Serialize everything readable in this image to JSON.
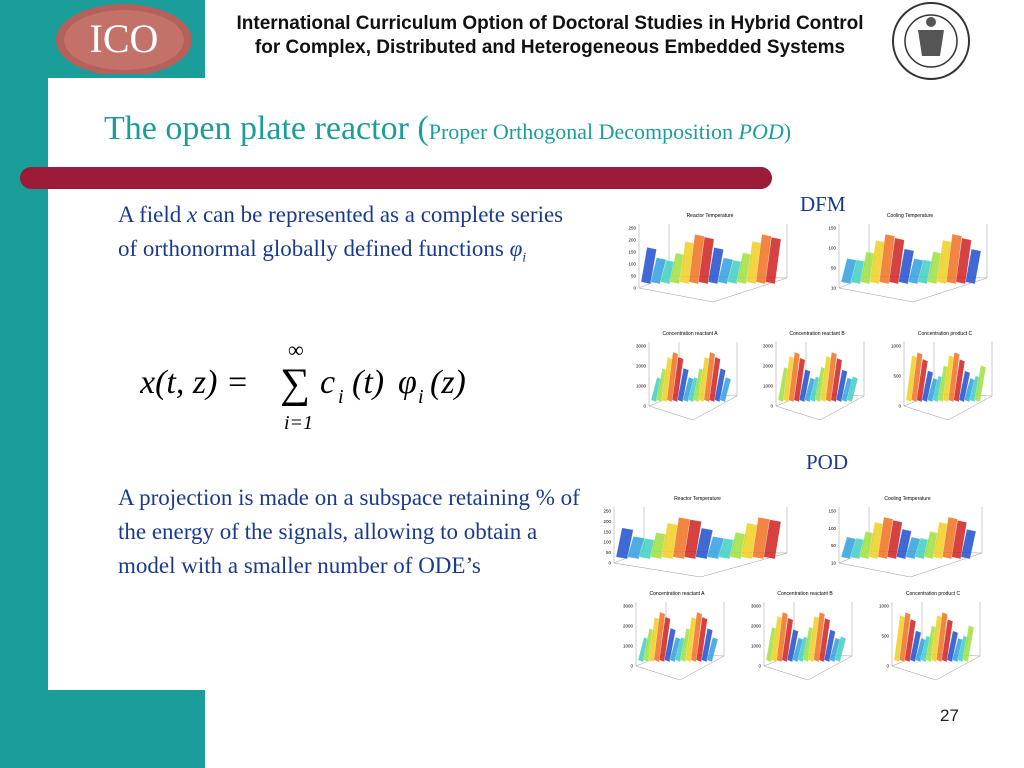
{
  "header": {
    "line1": "International Curriculum Option of Doctoral Studies in Hybrid Control",
    "line2": "for Complex, Distributed and Heterogeneous Embedded Systems",
    "logo_text": "ICO"
  },
  "title": {
    "main": "The open plate reactor (",
    "sub": "Proper Orthogonal Decomposition ",
    "sub_italic": "POD",
    "close": ")"
  },
  "paragraph1": {
    "a": "A field ",
    "b": "x",
    "c": " can be represented as a complete series of orthonormal globally defined functions ",
    "d": "φ",
    "e": "i"
  },
  "equation": {
    "lhs": "x(t, z) =",
    "sum": "∑",
    "upper": "∞",
    "lower": "i=1",
    "c": "c",
    "c_sub": "i",
    "t": "(t)",
    "phi": "φ",
    "phi_sub": "i",
    "z": "(z)"
  },
  "paragraph2": "A projection is made on a subspace retaining  % of the energy of the signals, allowing to obtain a model with a smaller number of ODE’s",
  "dfm": {
    "label": "DFM",
    "plots": [
      {
        "title": "Reactor Temperature",
        "zticks": [
          250,
          200,
          150,
          100,
          50,
          0
        ]
      },
      {
        "title": "Cooling Temperature",
        "zticks": [
          150,
          100,
          50,
          10
        ]
      },
      {
        "title": "Concentration reactant A",
        "zticks": [
          3000,
          2000,
          1000,
          0
        ]
      },
      {
        "title": "Concentration reactant B",
        "zticks": [
          3000,
          2000,
          1000,
          0
        ]
      },
      {
        "title": "Concentration product C",
        "zticks": [
          1000,
          500,
          0
        ]
      }
    ]
  },
  "pod": {
    "label": "POD",
    "plots": [
      {
        "title": "Reactor Temperature",
        "zticks": [
          250,
          200,
          150,
          100,
          50,
          0
        ]
      },
      {
        "title": "Cooling Temperature",
        "zticks": [
          150,
          100,
          50,
          10
        ]
      },
      {
        "title": "Concentration reactant A",
        "zticks": [
          3000,
          2000,
          1000,
          0
        ]
      },
      {
        "title": "Concentration reactant B",
        "zticks": [
          3000,
          2000,
          1000,
          0
        ]
      },
      {
        "title": "Concentration product C",
        "zticks": [
          1000,
          500,
          0
        ]
      }
    ]
  },
  "page_number": "27"
}
